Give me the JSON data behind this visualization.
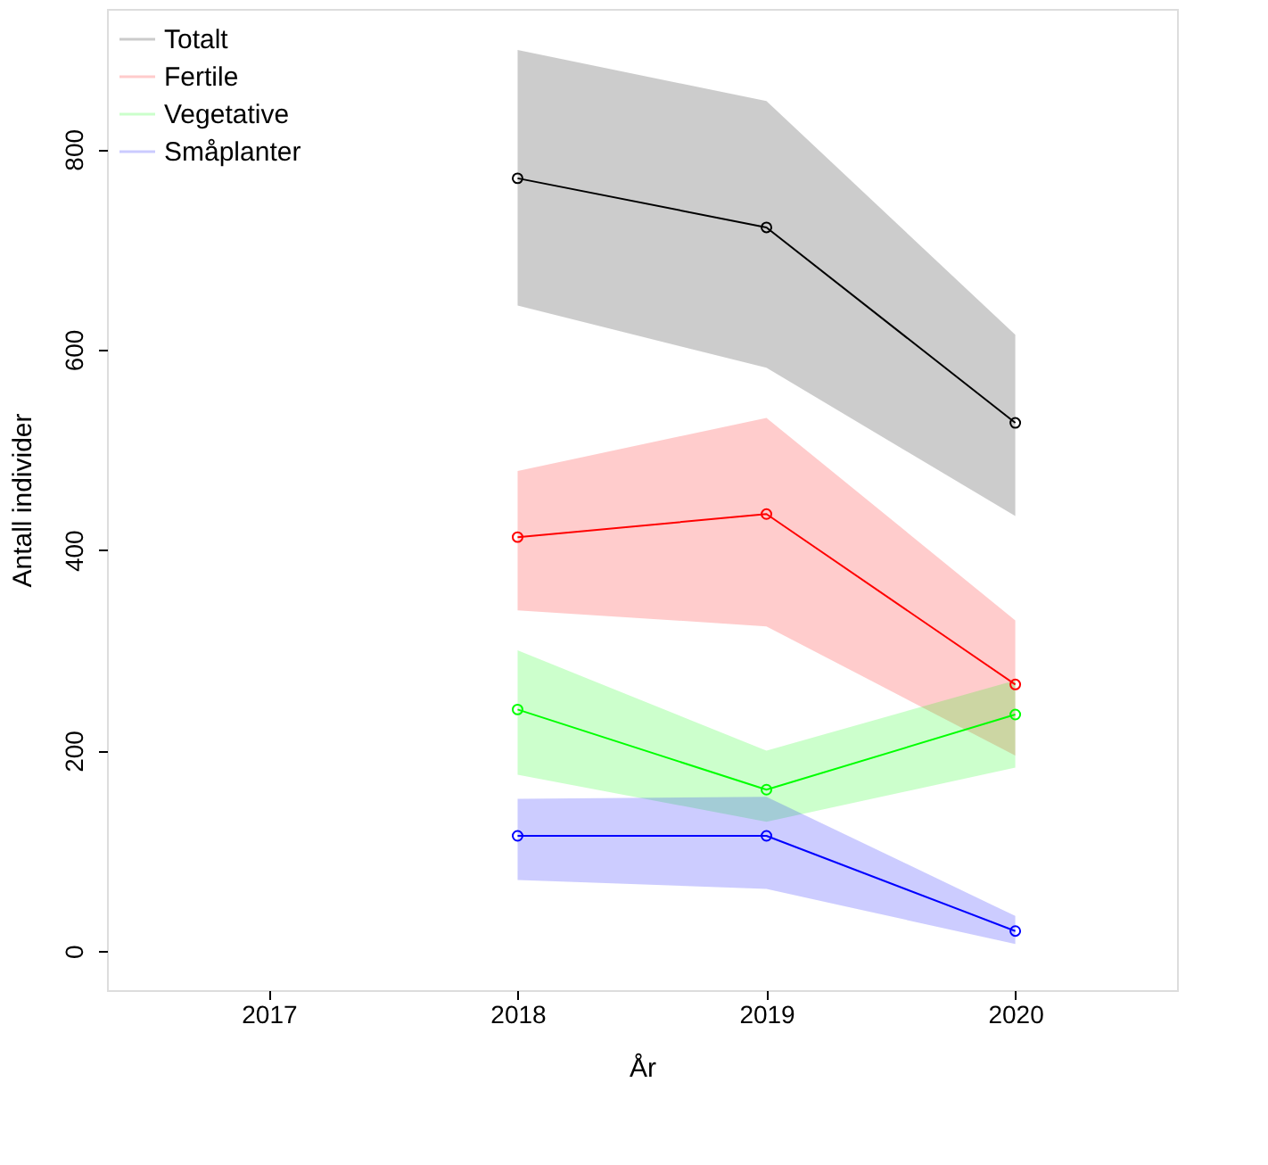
{
  "chart_data": {
    "type": "line",
    "xlabel": "År",
    "ylabel": "Antall individer",
    "x": [
      2018,
      2019,
      2020
    ],
    "xlim": [
      2016.35,
      2020.65
    ],
    "xticks": [
      2017,
      2018,
      2019,
      2020
    ],
    "ylim": [
      -39,
      940
    ],
    "yticks": [
      0,
      200,
      400,
      600,
      800
    ],
    "grid": false,
    "legend": "top left",
    "marker": "circle",
    "line_style": "solid",
    "series": [
      {
        "name": "Totalt",
        "color": "#000000",
        "values": [
          771,
          722,
          527
        ],
        "lower": [
          644,
          582,
          434
        ],
        "upper": [
          899,
          848,
          615
        ]
      },
      {
        "name": "Fertile",
        "color": "#ff0000",
        "values": [
          413,
          436,
          266
        ],
        "lower": [
          340,
          324,
          195
        ],
        "upper": [
          479,
          532,
          330
        ]
      },
      {
        "name": "Vegetative",
        "color": "#00ff00",
        "values": [
          241,
          161,
          236
        ],
        "lower": [
          176,
          129,
          183
        ],
        "upper": [
          300,
          200,
          270
        ]
      },
      {
        "name": "Småplanter",
        "color": "#0000ff",
        "values": [
          115,
          115,
          20
        ],
        "lower": [
          71,
          62,
          7
        ],
        "upper": [
          152,
          154,
          35
        ]
      }
    ]
  }
}
